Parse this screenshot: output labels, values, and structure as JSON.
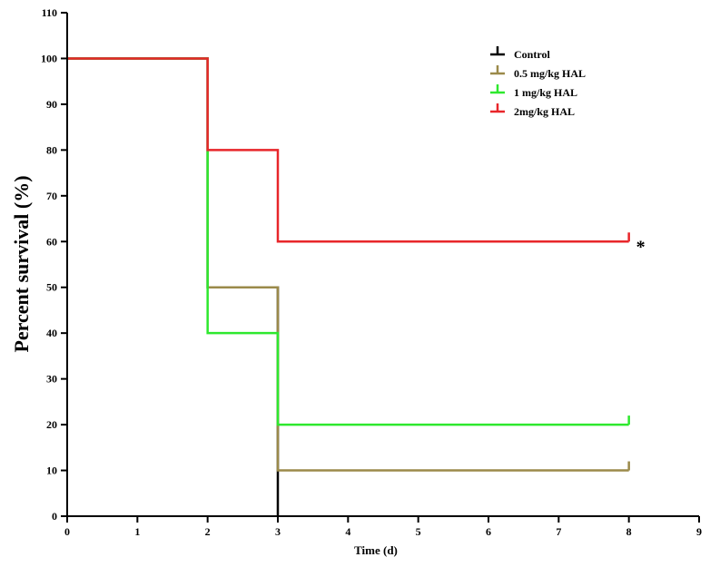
{
  "chart_data": {
    "type": "line",
    "step": true,
    "xlabel": "Time (d)",
    "ylabel": "Percent survival (%)",
    "xlim": [
      0,
      9
    ],
    "ylim": [
      0,
      110
    ],
    "xticks": [
      "0",
      "1",
      "2",
      "3",
      "4",
      "5",
      "6",
      "7",
      "8",
      "9"
    ],
    "yticks": [
      "0",
      "10",
      "20",
      "30",
      "40",
      "50",
      "60",
      "70",
      "80",
      "90",
      "100",
      "110"
    ],
    "grid": false,
    "legend_position": "top-right",
    "series": [
      {
        "name": "Control",
        "color": "#000000",
        "x": [
          0,
          2,
          3,
          3
        ],
        "y": [
          100,
          50,
          0,
          0
        ]
      },
      {
        "name": "0.5 mg/kg HAL",
        "color": "#9b8a4a",
        "x": [
          0,
          2,
          3,
          8
        ],
        "y": [
          100,
          50,
          10,
          10
        ]
      },
      {
        "name": "1 mg/kg HAL",
        "color": "#2ee82e",
        "x": [
          0,
          2,
          3,
          8
        ],
        "y": [
          100,
          40,
          20,
          20
        ]
      },
      {
        "name": "2mg/kg HAL",
        "color": "#e8262a",
        "x": [
          0,
          2,
          3,
          8
        ],
        "y": [
          100,
          80,
          60,
          60
        ]
      }
    ],
    "annotations": [
      {
        "text": "*",
        "x": 8,
        "y": 60
      }
    ]
  }
}
